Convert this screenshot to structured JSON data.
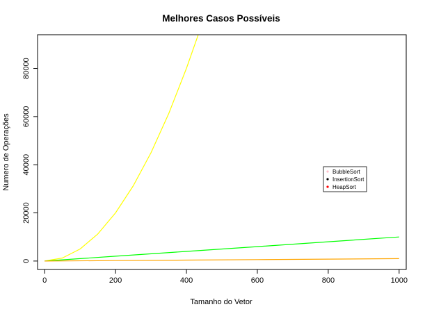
{
  "chart_data": {
    "type": "line",
    "title": "Melhores Casos Possíveis",
    "xlabel": "Tamanho do Vetor",
    "ylabel": "Numero de Operações",
    "xlim": [
      -20,
      1020
    ],
    "ylim": [
      -3500,
      94000
    ],
    "x_ticks": [
      0,
      200,
      400,
      600,
      800,
      1000
    ],
    "y_ticks": [
      0,
      20000,
      40000,
      60000,
      80000
    ],
    "grid": false,
    "legend_position": "right",
    "legend": [
      {
        "name": "BubbleSort",
        "color": "#ffc0cb"
      },
      {
        "name": "InsertionSort",
        "color": "#000000"
      },
      {
        "name": "HeapSort",
        "color": "#ff0000"
      }
    ],
    "series": [
      {
        "color": "#ffff00",
        "x": [
          0,
          50,
          100,
          150,
          200,
          250,
          300,
          350,
          400,
          440
        ],
        "y": [
          0,
          1250,
          5000,
          11250,
          20000,
          31250,
          45000,
          61250,
          80000,
          96800
        ]
      },
      {
        "color": "#00ff00",
        "x": [
          0,
          200,
          400,
          600,
          800,
          1000
        ],
        "y": [
          0,
          2000,
          4000,
          6000,
          8000,
          10000
        ]
      },
      {
        "color": "#ffa500",
        "x": [
          0,
          200,
          400,
          600,
          800,
          1000
        ],
        "y": [
          0,
          200,
          400,
          600,
          800,
          1000
        ]
      }
    ]
  }
}
